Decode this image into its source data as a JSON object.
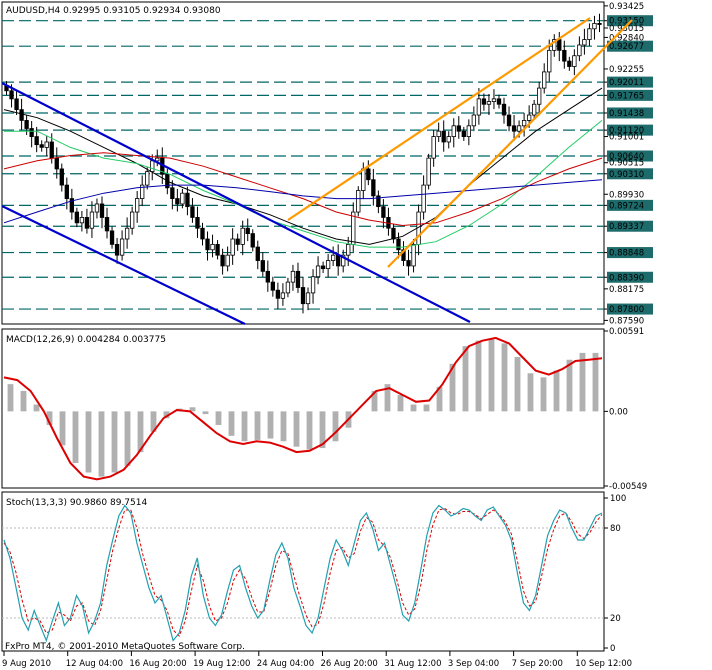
{
  "colors": {
    "background": "#ffffff",
    "candles": "#000000",
    "channel_down": "#0000cc",
    "channel_up": "#ff9900",
    "ma_black": "#000000",
    "ma_green": "#22cc66",
    "ma_red": "#cc0000",
    "ma_blue": "#0000aa",
    "level_line": "#006666",
    "macd_signal": "#dd0000",
    "macd_hist": "#b0b0b0",
    "stoch_main": "#20a0b0",
    "stoch_signal": "#dd0000"
  },
  "header": {
    "main": "AUDUSD,H4  0.92995 0.93105 0.92934 0.93080",
    "macd": "MACD(12,26,9) 0.004284 0.003775",
    "stoch": "Stoch(13,3,3) 90.9860 89.7514",
    "copyright": "FxPro MT4, © 2001-2010 MetaQuotes Software Corp."
  },
  "chart_data": [
    {
      "type": "candlestick",
      "symbol": "AUDUSD",
      "timeframe": "H4",
      "price_axis_labels": [
        "0.93425",
        "0.93150",
        "0.93015",
        "0.92840",
        "0.92677",
        "0.92255",
        "0.92011",
        "0.91765",
        "0.91438",
        "0.91120",
        "0.91001",
        "0.90640",
        "0.90515",
        "0.90310",
        "0.89930",
        "0.89724",
        "0.89337",
        "0.88848",
        "0.88390",
        "0.88175",
        "0.87800",
        "0.87590"
      ],
      "highlighted_levels": [
        "0.93150",
        "0.92677",
        "0.92011",
        "0.91765",
        "0.91438",
        "0.91120",
        "0.90640",
        "0.90310",
        "0.89724",
        "0.89337",
        "0.88848",
        "0.88390",
        "0.87800"
      ],
      "ylim": [
        0.8756,
        0.9346
      ],
      "x_labels": [
        "9 Aug 2010",
        "12 Aug 04:00",
        "16 Aug 20:00",
        "19 Aug 12:00",
        "24 Aug 04:00",
        "26 Aug 20:00",
        "31 Aug 12:00",
        "3 Sep 04:00",
        "7 Sep 20:00",
        "10 Sep 12:00"
      ],
      "close": [
        0.9185,
        0.917,
        0.915,
        0.913,
        0.9115,
        0.91,
        0.9085,
        0.908,
        0.909,
        0.906,
        0.904,
        0.901,
        0.8985,
        0.896,
        0.894,
        0.895,
        0.893,
        0.896,
        0.8975,
        0.895,
        0.8925,
        0.89,
        0.888,
        0.891,
        0.893,
        0.896,
        0.8985,
        0.901,
        0.9035,
        0.9055,
        0.906,
        0.903,
        0.9005,
        0.8985,
        0.8975,
        0.8995,
        0.897,
        0.895,
        0.893,
        0.891,
        0.889,
        0.89,
        0.888,
        0.886,
        0.888,
        0.891,
        0.89,
        0.893,
        0.892,
        0.8895,
        0.887,
        0.885,
        0.883,
        0.8815,
        0.88,
        0.881,
        0.883,
        0.885,
        0.882,
        0.879,
        0.881,
        0.884,
        0.886,
        0.8855,
        0.887,
        0.888,
        0.886,
        0.888,
        0.89,
        0.896,
        0.9,
        0.904,
        0.902,
        0.899,
        0.897,
        0.895,
        0.893,
        0.891,
        0.889,
        0.887,
        0.886,
        0.89,
        0.896,
        0.901,
        0.906,
        0.91,
        0.911,
        0.909,
        0.91,
        0.912,
        0.911,
        0.91,
        0.912,
        0.914,
        0.917,
        0.916,
        0.9165,
        0.917,
        0.916,
        0.914,
        0.912,
        0.911,
        0.912,
        0.913,
        0.914,
        0.916,
        0.919,
        0.922,
        0.926,
        0.928,
        0.926,
        0.924,
        0.923,
        0.925,
        0.927,
        0.928,
        0.93,
        0.931,
        0.9308
      ],
      "moving_averages": [
        {
          "color": "#000000",
          "values": [
            0.915,
            0.9135,
            0.911,
            0.908,
            0.905,
            0.9015,
            0.899,
            0.8975,
            0.8955,
            0.893,
            0.891,
            0.89,
            0.8915,
            0.895,
            0.901,
            0.906,
            0.911,
            0.915,
            0.919
          ]
        },
        {
          "color": "#22cc66",
          "values": [
            0.911,
            0.911,
            0.908,
            0.906,
            0.905,
            0.903,
            0.9,
            0.8975,
            0.8945,
            0.8925,
            0.8905,
            0.8895,
            0.8895,
            0.8905,
            0.8935,
            0.8975,
            0.9025,
            0.908,
            0.913
          ]
        },
        {
          "color": "#cc0000",
          "values": [
            0.904,
            0.9055,
            0.9065,
            0.907,
            0.9065,
            0.906,
            0.9045,
            0.9025,
            0.9005,
            0.8985,
            0.896,
            0.8945,
            0.8935,
            0.894,
            0.896,
            0.8985,
            0.9015,
            0.904,
            0.906
          ]
        },
        {
          "color": "#0000aa",
          "values": [
            0.894,
            0.896,
            0.898,
            0.8995,
            0.9005,
            0.901,
            0.901,
            0.9005,
            0.8998,
            0.899,
            0.8985,
            0.8985,
            0.899,
            0.8995,
            0.9,
            0.9005,
            0.901,
            0.9015,
            0.902
          ]
        }
      ]
    },
    {
      "type": "line",
      "name": "MACD(12,26,9)",
      "axis_labels": [
        "0.00591",
        "0.00",
        "-0.00549"
      ],
      "ylim": [
        -0.00549,
        0.00591
      ],
      "histogram": [
        0.002,
        0.0015,
        0.0005,
        -0.001,
        -0.0025,
        -0.0038,
        -0.0045,
        -0.0048,
        -0.0045,
        -0.004,
        -0.003,
        -0.0015,
        -0.0005,
        0.0002,
        0.0003,
        -0.0002,
        -0.001,
        -0.0018,
        -0.0022,
        -0.0021,
        -0.002,
        -0.0022,
        -0.0026,
        -0.0028,
        -0.0027,
        -0.0022,
        -0.0012,
        0.0,
        0.0015,
        0.002,
        0.0012,
        0.0005,
        0.0005,
        0.0018,
        0.0035,
        0.0048,
        0.0052,
        0.0053,
        0.005,
        0.004,
        0.0028,
        0.0025,
        0.003,
        0.0038,
        0.0043,
        0.0043
      ],
      "signal": [
        0.0025,
        0.0023,
        0.0015,
        0.0,
        -0.002,
        -0.0038,
        -0.0048,
        -0.005,
        -0.0048,
        -0.0043,
        -0.0032,
        -0.0018,
        -0.0005,
        0.0001,
        0.0,
        -0.0008,
        -0.0016,
        -0.0022,
        -0.0024,
        -0.0022,
        -0.0023,
        -0.0026,
        -0.003,
        -0.0029,
        -0.0024,
        -0.0015,
        -0.0005,
        0.0005,
        0.0015,
        0.0017,
        0.0012,
        0.0007,
        0.0008,
        0.002,
        0.0036,
        0.0048,
        0.0052,
        0.0054,
        0.005,
        0.004,
        0.003,
        0.0027,
        0.0031,
        0.0037,
        0.0038,
        0.0039
      ]
    },
    {
      "type": "line",
      "name": "Stoch(13,3,3)",
      "axis_labels": [
        "100",
        "80",
        "20",
        "0"
      ],
      "ylim": [
        0,
        100
      ],
      "main": [
        72,
        60,
        40,
        20,
        12,
        25,
        15,
        5,
        18,
        30,
        15,
        20,
        35,
        28,
        10,
        18,
        30,
        55,
        72,
        88,
        95,
        90,
        70,
        55,
        40,
        30,
        35,
        20,
        5,
        10,
        25,
        48,
        60,
        35,
        20,
        15,
        22,
        38,
        52,
        55,
        40,
        28,
        20,
        25,
        45,
        62,
        70,
        60,
        40,
        28,
        15,
        10,
        20,
        40,
        60,
        72,
        65,
        55,
        70,
        85,
        90,
        80,
        65,
        70,
        55,
        40,
        22,
        18,
        30,
        52,
        75,
        90,
        95,
        92,
        88,
        90,
        93,
        92,
        88,
        85,
        92,
        94,
        88,
        82,
        72,
        50,
        30,
        25,
        35,
        55,
        75,
        85,
        92,
        90,
        80,
        72,
        72,
        80,
        88,
        90
      ],
      "signal": [
        70,
        64,
        50,
        32,
        18,
        20,
        18,
        10,
        12,
        24,
        22,
        18,
        28,
        30,
        18,
        15,
        25,
        45,
        65,
        80,
        92,
        92,
        80,
        62,
        48,
        35,
        32,
        25,
        12,
        8,
        18,
        38,
        55,
        45,
        28,
        18,
        20,
        30,
        45,
        52,
        46,
        34,
        24,
        24,
        38,
        55,
        65,
        63,
        48,
        34,
        22,
        14,
        16,
        30,
        50,
        65,
        67,
        60,
        63,
        78,
        87,
        84,
        72,
        68,
        60,
        46,
        30,
        22,
        26,
        42,
        65,
        82,
        92,
        93,
        90,
        89,
        91,
        91,
        89,
        86,
        89,
        92,
        89,
        84,
        76,
        58,
        38,
        28,
        31,
        48,
        66,
        79,
        88,
        90,
        84,
        76,
        73,
        77,
        84,
        89
      ]
    }
  ]
}
